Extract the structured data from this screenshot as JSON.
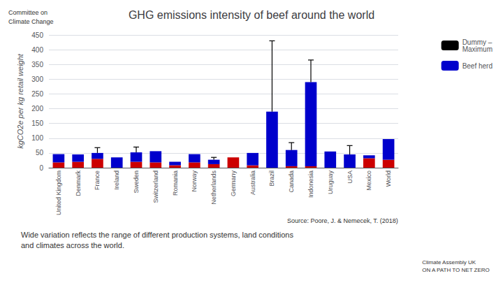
{
  "chart_data": {
    "type": "bar",
    "title": "GHG emissions intensity of beef around the world",
    "subtitle": "Wide variation reflects the range of different production systems, land conditions\nand climates across the world.",
    "ylabel": "kgCO2e per kg retail weight",
    "annotations": [
      "Source: Poore, J. & Nemecek, T. (2018)",
      "Climate Assembly UK\nON A PATH TO NET ZERO",
      "Committee on",
      "Climate Change"
    ],
    "categories": [
      "United Kingdom",
      "Denmark",
      "France",
      "Ireland",
      "Sweden",
      "Switzerland",
      "Romania",
      "Norway",
      "Netherlands",
      "Germany",
      "Australia",
      "Brazil",
      "Canada",
      "Indonesia",
      "Uruguay",
      "USA",
      "Mexico",
      "World"
    ],
    "series": [
      {
        "color": "#CC0000",
        "values": [
          18,
          20,
          30,
          0,
          20,
          18,
          8,
          18,
          12,
          35,
          8,
          0,
          5,
          5,
          0,
          0,
          32,
          27
        ]
      },
      {
        "name": "Beef herd",
        "color": "#0000CC",
        "values": [
          28,
          25,
          20,
          35,
          32,
          38,
          12,
          28,
          15,
          0,
          42,
          190,
          55,
          285,
          55,
          45,
          10,
          70
        ]
      }
    ],
    "error_bars": {
      "name": "Dummy –\nMaximum",
      "color": "#000000",
      "values": [
        null,
        null,
        68,
        null,
        70,
        null,
        null,
        null,
        35,
        null,
        null,
        430,
        85,
        365,
        null,
        75,
        null,
        null
      ]
    },
    "stacked": true,
    "ylim": [
      0,
      450
    ],
    "yticks": [
      0,
      50,
      100,
      150,
      200,
      250,
      300,
      350,
      400,
      450
    ],
    "grid": true,
    "legend": "upper right"
  }
}
